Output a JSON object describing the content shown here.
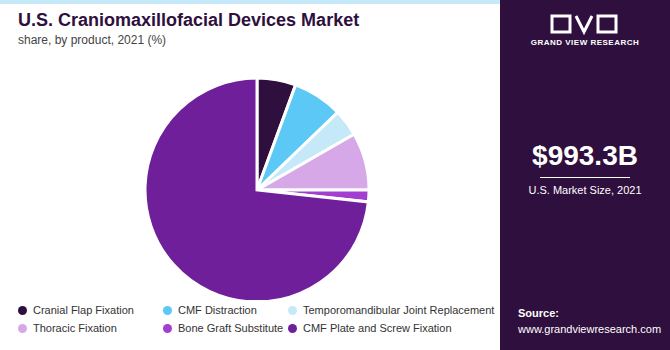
{
  "chart_data": {
    "type": "pie",
    "title": "U.S. Craniomaxillofacial Devices Market",
    "subtitle": "share, by product, 2021 (%)",
    "categories": [
      "Cranial Flap Fixation",
      "CMF Distraction",
      "Temporomandibular Joint Replacement",
      "Thoracic Fixation",
      "Bone Graft Substitute",
      "CMF Plate and Screw Fixation"
    ],
    "values": [
      5.6,
      7.2,
      3.9,
      8.3,
      1.7,
      73.3
    ],
    "colors": [
      "#2e0f3d",
      "#5bc8f5",
      "#c5e9f9",
      "#d6a8e8",
      "#a33fd0",
      "#6f1f9a"
    ],
    "legend": "bottom",
    "brand": "GRAND VIEW RESEARCH",
    "market_size": "$993.3B",
    "market_size_label": "U.S. Market Size, 2021",
    "source_label": "Source:",
    "source_url": "www.grandviewresearch.com"
  }
}
